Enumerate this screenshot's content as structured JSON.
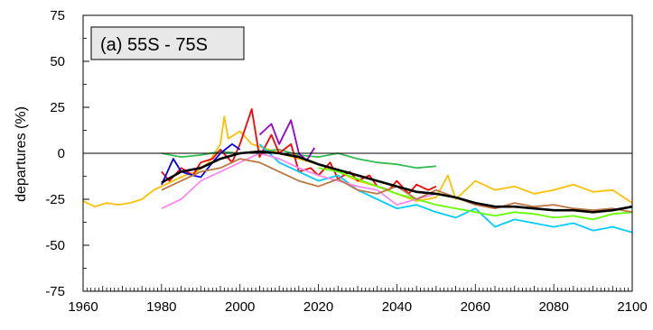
{
  "chart_data": {
    "type": "line",
    "title": "",
    "panel_label": "(a) 55S - 75S",
    "xlabel": "",
    "ylabel": "departures (%)",
    "xlim": [
      1960,
      2100
    ],
    "ylim": [
      -75,
      75
    ],
    "x_ticks": [
      1960,
      1980,
      2000,
      2020,
      2040,
      2060,
      2080,
      2100
    ],
    "y_ticks": [
      75,
      50,
      25,
      0,
      -25,
      -50,
      -75
    ],
    "zero_line": true,
    "legend": "none",
    "series": [
      {
        "color": "#FFC000",
        "x": [
          1960,
          1963,
          1966,
          1969,
          1972,
          1975,
          1978,
          1980,
          1983,
          1986,
          1989,
          1992,
          1995,
          1996,
          1997,
          2000,
          2003,
          2006,
          2010,
          2015,
          2020,
          2025,
          2030,
          2035,
          2040,
          2045,
          2050,
          2053,
          2055,
          2060,
          2065,
          2070,
          2075,
          2080,
          2085,
          2090,
          2095,
          2100
        ],
        "y": [
          -26,
          -29,
          -27,
          -28,
          -27,
          -25,
          -20,
          -18,
          -15,
          -12,
          -10,
          -5,
          5,
          20,
          8,
          12,
          5,
          3,
          0,
          -3,
          -6,
          -10,
          -15,
          -18,
          -22,
          -26,
          -24,
          -12,
          -25,
          -15,
          -20,
          -18,
          -22,
          -20,
          -17,
          -21,
          -20,
          -27
        ]
      },
      {
        "color": "#33BB55",
        "x": [
          1980,
          1985,
          1990,
          1995,
          2000,
          2005,
          2010,
          2015,
          2020,
          2025,
          2030,
          2035,
          2040,
          2045,
          2050
        ],
        "y": [
          0,
          -2,
          -1,
          1,
          0,
          1,
          2,
          -1,
          -2,
          0,
          -3,
          -5,
          -6,
          -8,
          -7
        ]
      },
      {
        "color": "#FF0000",
        "x": [
          1980,
          1982,
          1985,
          1988,
          1990,
          1993,
          1995,
          1998,
          2000,
          2003,
          2005,
          2008,
          2010,
          2013,
          2015,
          2018,
          2020,
          2023,
          2025,
          2028,
          2030,
          2033,
          2035,
          2038,
          2040,
          2043,
          2045,
          2048,
          2050
        ],
        "y": [
          -10,
          -15,
          -8,
          -12,
          -5,
          -3,
          2,
          -5,
          5,
          24,
          -2,
          10,
          0,
          5,
          -10,
          -8,
          -12,
          -5,
          -14,
          -10,
          -15,
          -12,
          -18,
          -20,
          -15,
          -22,
          -17,
          -20,
          -18
        ]
      },
      {
        "color": "#0000EE",
        "x": [
          1980,
          1983,
          1985,
          1988,
          1990,
          1993,
          1995,
          1998,
          2000
        ],
        "y": [
          -17,
          -3,
          -10,
          -12,
          -13,
          -5,
          0,
          5,
          2
        ]
      },
      {
        "color": "#9900CC",
        "x": [
          2005,
          2008,
          2010,
          2013,
          2015,
          2017,
          2019
        ],
        "y": [
          10,
          16,
          5,
          18,
          0,
          -4,
          3
        ]
      },
      {
        "color": "#00CCFF",
        "x": [
          2005,
          2010,
          2015,
          2020,
          2025,
          2030,
          2035,
          2040,
          2045,
          2050,
          2055,
          2060,
          2065,
          2070,
          2075,
          2080,
          2085,
          2090,
          2095,
          2100
        ],
        "y": [
          5,
          -5,
          -10,
          -15,
          -12,
          -20,
          -25,
          -30,
          -28,
          -32,
          -35,
          -30,
          -40,
          -36,
          -38,
          -40,
          -38,
          -42,
          -40,
          -43
        ]
      },
      {
        "color": "#66FF00",
        "x": [
          2020,
          2025,
          2030,
          2035,
          2040,
          2045,
          2050,
          2055,
          2060,
          2065,
          2070,
          2075,
          2080,
          2085,
          2090,
          2095,
          2100
        ],
        "y": [
          -8,
          -10,
          -14,
          -18,
          -22,
          -25,
          -28,
          -30,
          -32,
          -34,
          -32,
          -33,
          -35,
          -34,
          -36,
          -33,
          -32
        ]
      },
      {
        "color": "#FF88EE",
        "x": [
          1980,
          1985,
          1990,
          1995,
          2000,
          2005,
          2010,
          2015,
          2020,
          2025,
          2030,
          2035,
          2040,
          2045,
          2050
        ],
        "y": [
          -30,
          -25,
          -15,
          -10,
          -5,
          0,
          -3,
          -8,
          -12,
          -15,
          -18,
          -20,
          -28,
          -25,
          -22
        ]
      },
      {
        "color": "#BB7744",
        "x": [
          1980,
          1985,
          1990,
          1995,
          2000,
          2005,
          2010,
          2015,
          2020,
          2025,
          2030,
          2035,
          2040,
          2045,
          2050,
          2055,
          2060,
          2065,
          2070,
          2075,
          2080,
          2085,
          2090,
          2095,
          2100
        ],
        "y": [
          -20,
          -15,
          -10,
          -8,
          -3,
          -5,
          -10,
          -15,
          -18,
          -14,
          -20,
          -22,
          -18,
          -25,
          -20,
          -24,
          -28,
          -30,
          -27,
          -29,
          -28,
          -30,
          -31,
          -30,
          -32
        ]
      },
      {
        "color": "#000000",
        "x": [
          1980,
          1985,
          1990,
          1995,
          2000,
          2005,
          2010,
          2015,
          2020,
          2025,
          2030,
          2035,
          2040,
          2045,
          2050,
          2055,
          2060,
          2065,
          2070,
          2075,
          2080,
          2085,
          2090,
          2095,
          2100
        ],
        "y": [
          -16,
          -10,
          -8,
          -3,
          0,
          1,
          0,
          -2,
          -6,
          -9,
          -12,
          -15,
          -18,
          -21,
          -22,
          -24,
          -27,
          -29,
          -29,
          -30,
          -31,
          -31,
          -32,
          -31,
          -29
        ]
      }
    ]
  }
}
